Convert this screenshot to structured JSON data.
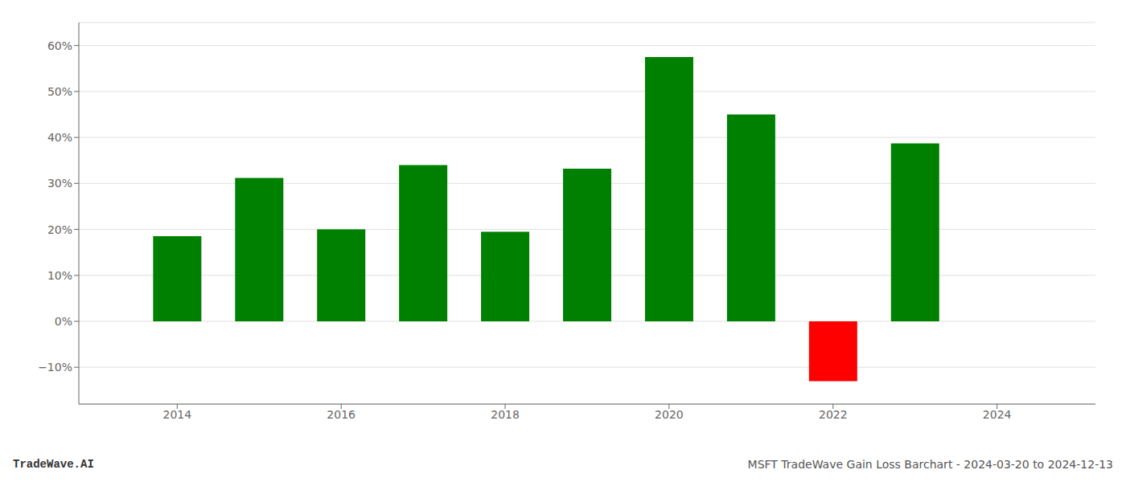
{
  "chart_data": {
    "type": "bar",
    "x": [
      2014,
      2015,
      2016,
      2017,
      2018,
      2019,
      2020,
      2021,
      2022,
      2023
    ],
    "values": [
      18.5,
      31.2,
      20.0,
      34.0,
      19.5,
      33.2,
      57.5,
      45.0,
      -13.0,
      38.7
    ],
    "colors": [
      "#008000",
      "#008000",
      "#008000",
      "#008000",
      "#008000",
      "#008000",
      "#008000",
      "#008000",
      "#ff0000",
      "#008000"
    ],
    "xlim": [
      2012.8,
      2025.2
    ],
    "xticks": [
      2014,
      2016,
      2018,
      2020,
      2022,
      2024
    ],
    "ylim": [
      -18,
      65
    ],
    "yticks": [
      {
        "value": -10,
        "label": "−10%"
      },
      {
        "value": 0,
        "label": "0%"
      },
      {
        "value": 10,
        "label": "10%"
      },
      {
        "value": 20,
        "label": "20%"
      },
      {
        "value": 30,
        "label": "30%"
      },
      {
        "value": 40,
        "label": "40%"
      },
      {
        "value": 50,
        "label": "50%"
      },
      {
        "value": 60,
        "label": "60%"
      }
    ],
    "grid": true,
    "annotations": [
      "TradeWave.AI",
      "MSFT TradeWave Gain Loss Barchart - 2024-03-20 to 2024-12-13"
    ]
  }
}
